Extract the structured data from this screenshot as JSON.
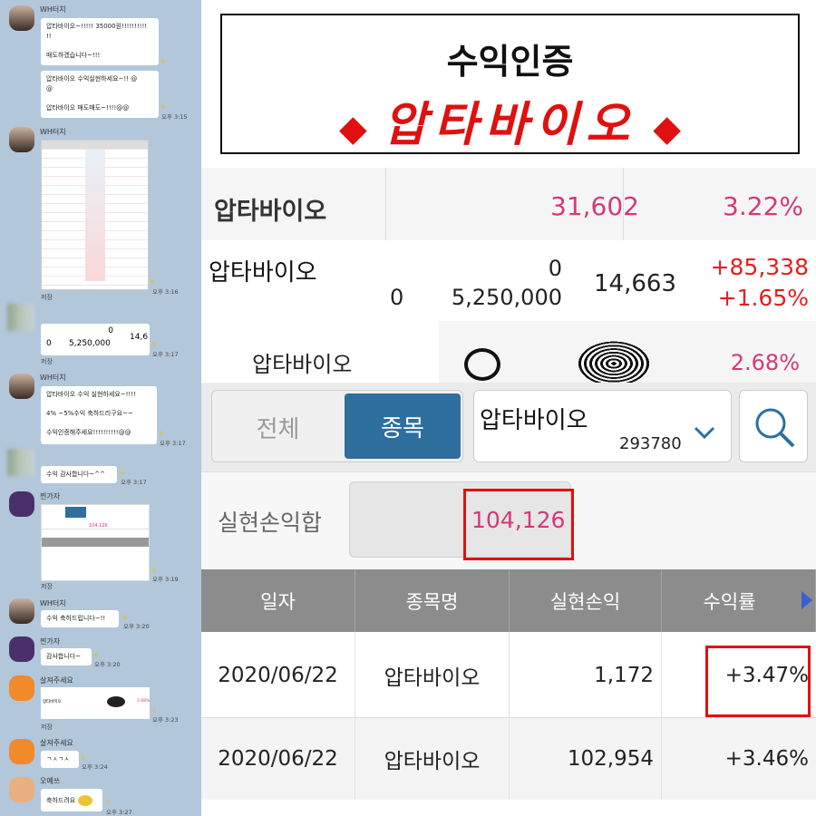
{
  "chat": {
    "messages": [
      {
        "sender": "WH터치",
        "text": "압타바이오~!!!!! 35000원!!!!!!!!!!\n!!\n\n매도하겠습니다~!!!",
        "unread": "6"
      },
      {
        "text": "압타바이오 수익실현하세요~!! @\n@\n\n압타바이오 매도매도~!!!!@@",
        "unread": "6",
        "time": "오후 3:15"
      },
      {
        "sender": "WH터치",
        "image": "order-book-screenshot",
        "unread": "6",
        "time": "오후 3:16",
        "save": "저장"
      },
      {
        "image_text": [
          "0",
          "0",
          "5,250,000",
          "14,6"
        ],
        "unread": "6",
        "time": "오후 3:17",
        "save": "저장"
      },
      {
        "sender": "WH터치",
        "text": "압타바이오 수익 실현하세요~!!!!\n\n4% ~5%수익 축하드리구요~~\n\n수익인증해주세요!!!!!!!!!!@@",
        "unread": "6",
        "time": "오후 3:17"
      },
      {
        "text": "수익 감사합니다~^^",
        "unread": "6",
        "time": "오후 3:17"
      },
      {
        "sender": "찐가자",
        "image": "profit-screenshot",
        "unread": "6",
        "time": "오후 3:19",
        "save": "저장"
      },
      {
        "sender": "WH터치",
        "text": "수익 축하드립니다~!!",
        "unread": "6",
        "time": "오후 3:20"
      },
      {
        "sender": "찐가자",
        "text": "감사합니다~",
        "unread": "6",
        "time": "오후 3:20"
      },
      {
        "sender": "살져주세요",
        "image": "scribble-screenshot",
        "image_text": "압타바이오",
        "image_pct": "2.68%",
        "unread": "6",
        "time": "오후 3:23",
        "save": "저장"
      },
      {
        "sender": "살져주세요",
        "text": "ㄱㅅㄱㅅ",
        "unread": "6",
        "time": "오후 3:24"
      },
      {
        "sender": "오예쓰",
        "text": "축하드려요",
        "unread": "7",
        "time": "오후 3:27"
      }
    ]
  },
  "banner": {
    "line1": "수익인증",
    "line2": "압타바이오",
    "diamond": "◆"
  },
  "rows": {
    "r1": {
      "name": "압타바이오",
      "price": "31,602",
      "pct": "3.22%"
    },
    "r2": {
      "name": "압타바이오",
      "a": "0",
      "b": "0",
      "qty": "5,250,000",
      "price": "14,663",
      "profit": "+85,338",
      "pct": "+1.65%"
    },
    "r3": {
      "name": "압타바이오",
      "pct": "2.68%"
    }
  },
  "app": {
    "tabs": [
      "전체",
      "종목"
    ],
    "active_tab": "종목",
    "stock_name": "압타바이오",
    "stock_code": "293780",
    "sum_label": "실현손익합",
    "sum_value": "104,126",
    "headers": [
      "일자",
      "종목명",
      "실현손익",
      "수익률"
    ],
    "table": [
      {
        "date": "2020/06/22",
        "name": "압타바이오",
        "profit": "1,172",
        "rate": "+3.47%"
      },
      {
        "date": "2020/06/22",
        "name": "압타바이오",
        "profit": "102,954",
        "rate": "+3.46%"
      }
    ],
    "colors": {
      "accent": "#2e6f9e",
      "pink": "#d23a78",
      "highlight": "#e02020",
      "header": "#8c8c8c"
    }
  }
}
